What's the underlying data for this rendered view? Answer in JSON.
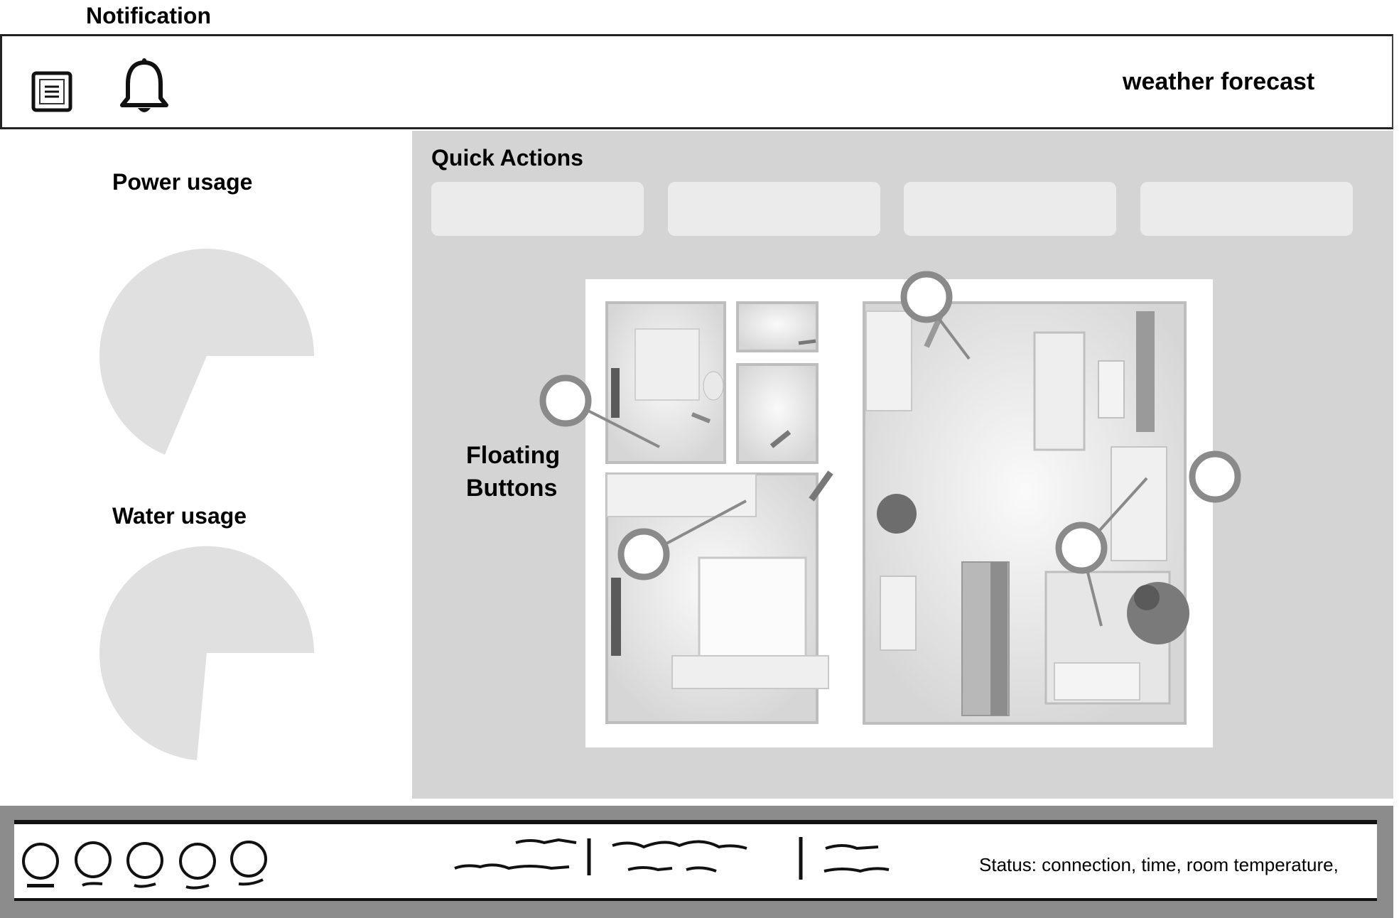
{
  "annotation": {
    "notification_label": "Notification"
  },
  "header": {
    "menu_icon": "menu-icon",
    "notification_icon": "bell-icon",
    "weather_label": "weather forecast"
  },
  "left_panel": {
    "power_title": "Power usage",
    "water_title": "Water usage"
  },
  "main": {
    "quick_actions_title": "Quick Actions",
    "quick_actions": [
      {
        "label": ""
      },
      {
        "label": ""
      },
      {
        "label": ""
      },
      {
        "label": ""
      }
    ],
    "floating_buttons_label_line1": "Floating",
    "floating_buttons_label_line2": "Buttons",
    "floor_plan_image": "apartment floor plan (3D top view)"
  },
  "footer": {
    "nav_icons": [
      "circle-icon",
      "circle-icon",
      "circle-icon",
      "circle-icon",
      "circle-icon"
    ],
    "status_text": "Status: connection, time, room temperature,"
  },
  "colors": {
    "panel_gray": "#d4d4d4",
    "button_gray": "#ebebeb",
    "pie_gray": "#e0e0e0",
    "marker_gray": "#8a8a8a",
    "footer_gray": "#8c8c8c"
  }
}
